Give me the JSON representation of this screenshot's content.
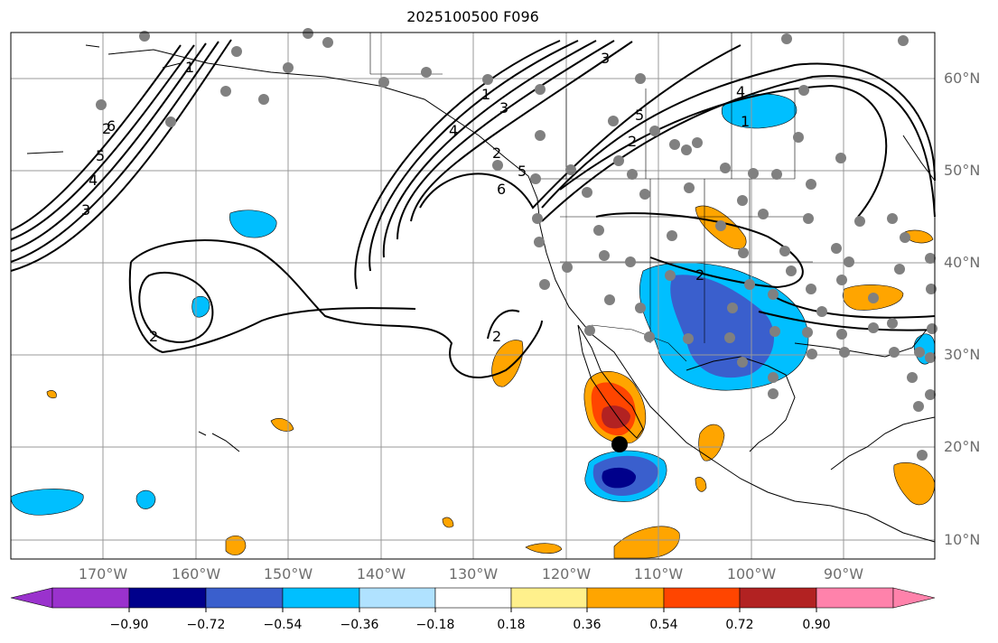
{
  "title": "2025100500 F096",
  "lat_labels": [
    "60°N",
    "50°N",
    "40°N",
    "30°N",
    "20°N",
    "10°N"
  ],
  "lon_labels": [
    "170°W",
    "160°W",
    "150°W",
    "140°W",
    "130°W",
    "120°W",
    "110°W",
    "100°W",
    "90°W"
  ],
  "contour_labels": [
    "1",
    "2",
    "3",
    "4",
    "5",
    "6",
    "1",
    "2",
    "3",
    "4",
    "5",
    "6",
    "1",
    "2",
    "3",
    "4",
    "5",
    "2",
    "2",
    "2"
  ],
  "colorbar": {
    "labels": [
      "−0.90",
      "−0.72",
      "−0.54",
      "−0.36",
      "−0.18",
      "0.18",
      "0.36",
      "0.54",
      "0.72",
      "0.90"
    ],
    "colors": [
      "#9a32cd",
      "#00008b",
      "#3a5fcd",
      "#00bfff",
      "#b0e2ff",
      "#ffffff",
      "#fff08c",
      "#ffa500",
      "#ff4500",
      "#b22222",
      "#ff82ab"
    ]
  },
  "marker": {
    "name": "black-dot"
  }
}
